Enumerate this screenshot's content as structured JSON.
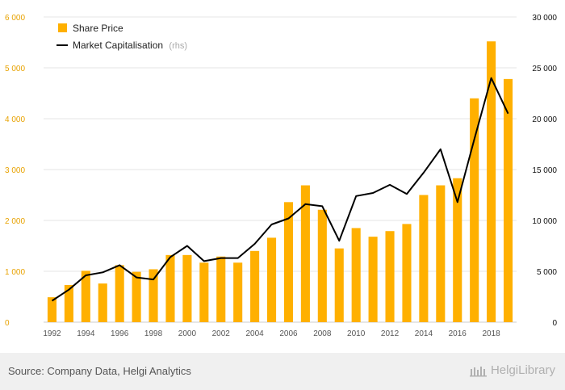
{
  "chart_data": {
    "type": "bar",
    "x": [
      "1992",
      "1993",
      "1994",
      "1995",
      "1996",
      "1997",
      "1998",
      "1999",
      "2000",
      "2001",
      "2002",
      "2003",
      "2004",
      "2005",
      "2006",
      "2007",
      "2008",
      "2009",
      "2010",
      "2011",
      "2012",
      "2013",
      "2014",
      "2015",
      "2016",
      "2017",
      "2018",
      "2019"
    ],
    "x_tick_labels": [
      "1992",
      "1994",
      "1996",
      "1998",
      "2000",
      "2002",
      "2004",
      "2006",
      "2008",
      "2010",
      "2012",
      "2014",
      "2016",
      "2018"
    ],
    "series": [
      {
        "name": "Share Price",
        "kind": "bar",
        "axis": "left",
        "color": "#ffb000",
        "values": [
          490,
          730,
          1010,
          760,
          1120,
          990,
          1040,
          1320,
          1320,
          1170,
          1290,
          1170,
          1400,
          1660,
          2360,
          2690,
          2210,
          1450,
          1850,
          1680,
          1790,
          1930,
          2500,
          2690,
          2830,
          4400,
          5520,
          4780
        ]
      },
      {
        "name": "Market Capitalisation",
        "name_suffix": "(rhs)",
        "kind": "line",
        "axis": "right",
        "color": "#000000",
        "values": [
          2100,
          3200,
          4600,
          4900,
          5600,
          4400,
          4200,
          6400,
          7500,
          6000,
          6300,
          6300,
          7700,
          9600,
          10200,
          11600,
          11400,
          8000,
          12400,
          12700,
          13500,
          12600,
          14700,
          17000,
          11800,
          18000,
          24000,
          20500
        ]
      }
    ],
    "y_left": {
      "min": 0,
      "max": 6000,
      "ticks": [
        "0",
        "1 000",
        "2 000",
        "3 000",
        "4 000",
        "5 000",
        "6 000"
      ]
    },
    "y_right": {
      "min": 0,
      "max": 30000,
      "ticks": [
        "0",
        "5 000",
        "10 000",
        "15 000",
        "20 000",
        "25 000",
        "30 000"
      ]
    },
    "grid": true,
    "legend_position": "top-left",
    "title": ""
  },
  "footer": {
    "source": "Source: Company Data, Helgi Analytics",
    "brand": "HelgiLibrary"
  },
  "colors": {
    "bar": "#ffb000",
    "line": "#000000",
    "left_axis_text": "#e8a200",
    "grid": "#e6e6e6",
    "footer_bg": "#f0f0f0"
  }
}
